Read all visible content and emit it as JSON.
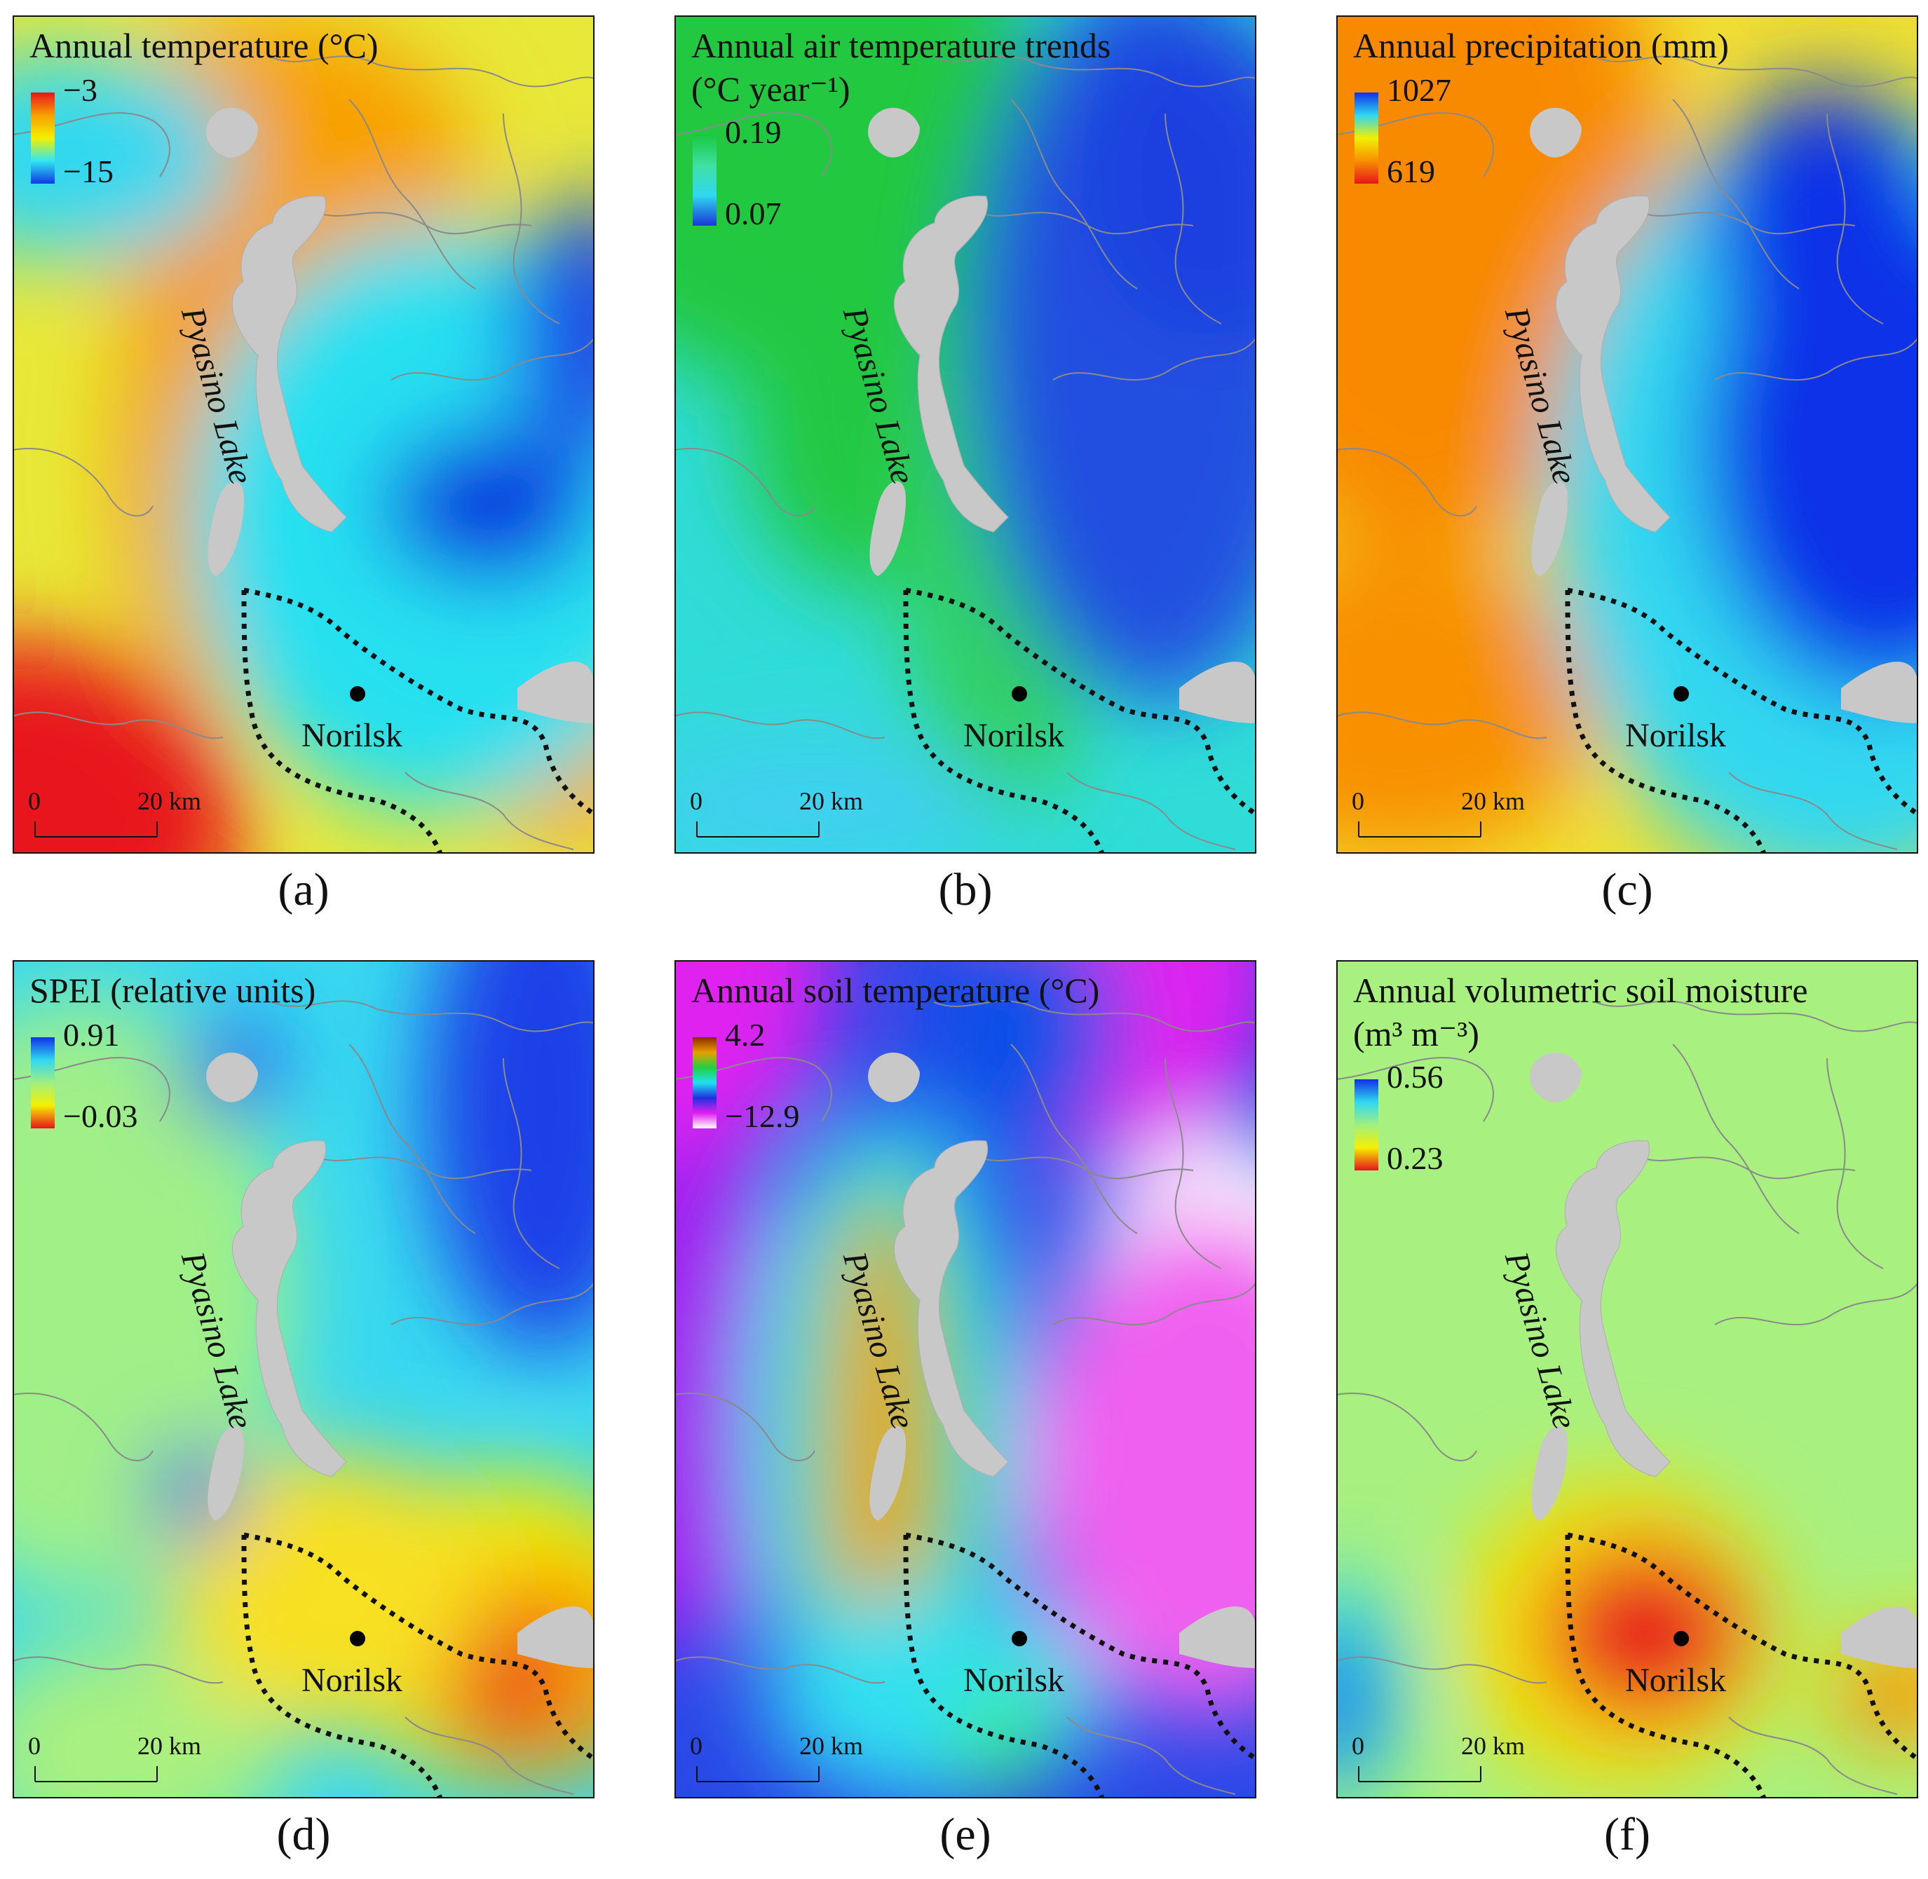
{
  "figure": {
    "panels": [
      {
        "caption": "(a)",
        "title_lines": [
          "Annual temperature (°C)"
        ],
        "legend": {
          "max": "−3",
          "min": "−15",
          "colors": [
            "#e8141c",
            "#f8a000",
            "#f4f000",
            "#30e8f0",
            "#1038e8"
          ]
        }
      },
      {
        "caption": "(b)",
        "title_lines": [
          "Annual air temperature trends",
          "(°C year⁻¹)"
        ],
        "legend": {
          "max": "0.19",
          "min": "0.07",
          "colors": [
            "#18c840",
            "#40e0a0",
            "#30d8f0",
            "#1838d8"
          ]
        }
      },
      {
        "caption": "(c)",
        "title_lines": [
          "Annual precipitation (mm)"
        ],
        "legend": {
          "max": "1027",
          "min": "619",
          "colors": [
            "#1030e8",
            "#30d8f0",
            "#f0f000",
            "#f89000",
            "#e8141c"
          ]
        }
      },
      {
        "caption": "(d)",
        "title_lines": [
          "SPEI (relative units)"
        ],
        "legend": {
          "max": "0.91",
          "min": "−0.03",
          "colors": [
            "#1030e8",
            "#30d8f0",
            "#a0f080",
            "#f4f000",
            "#e8141c"
          ]
        }
      },
      {
        "caption": "(e)",
        "title_lines": [
          "Annual soil temperature (°C)"
        ],
        "legend": {
          "max": "4.2",
          "min": "−12.9",
          "colors": [
            "#8a2a00",
            "#e8a000",
            "#20d040",
            "#20e0f0",
            "#2030e0",
            "#e020f0",
            "#ffffff"
          ]
        }
      },
      {
        "caption": "(f)",
        "title_lines": [
          "Annual volumetric soil moisture",
          "(m³ m⁻³)"
        ],
        "legend": {
          "max": "0.56",
          "min": "0.23",
          "colors": [
            "#1030e8",
            "#30d8f0",
            "#a0f080",
            "#f4f000",
            "#e8141c"
          ]
        }
      }
    ],
    "lake_label": "Pyasino Lake",
    "city_label": "Norilsk",
    "scale": {
      "zero": "0",
      "max": "20 km"
    }
  }
}
